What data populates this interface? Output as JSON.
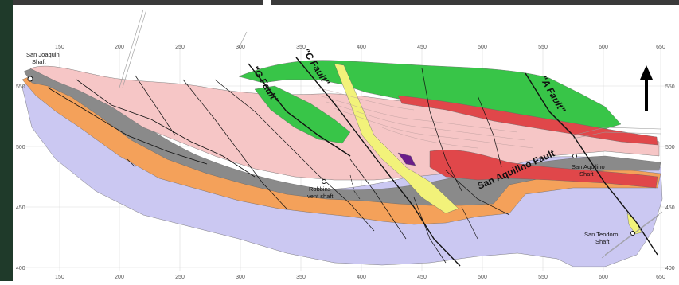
{
  "map": {
    "x_ticks": [
      "150",
      "200",
      "250",
      "300",
      "350",
      "400",
      "450",
      "500",
      "550",
      "600",
      "650"
    ],
    "y_ticks": [
      "550",
      "500",
      "450",
      "400"
    ],
    "fault_labels": {
      "g": "\"G Fault\"",
      "c": "\"C Fault\"",
      "a": "\"A Fault\"",
      "san_aquilino": "San Aquilino Fault"
    },
    "place_labels": {
      "san_joaquin_1": "San Joaquin",
      "san_joaquin_2": "Shaft",
      "robbins_1": "Robbins",
      "robbins_2": "vent shaft",
      "san_aquilino_1": "San Aquilino",
      "san_aquilino_2": "Shaft",
      "san_teodoro_1": "San Teodoro",
      "san_teodoro_2": "Shaft"
    },
    "north_arrow": "north-arrow-icon",
    "colors": {
      "lavender": "#cbc8f2",
      "orange": "#f4a15a",
      "grey": "#8a8a8a",
      "pink": "#f6c6c6",
      "green": "#38c548",
      "red": "#e0474a",
      "yellow": "#f2f27a",
      "purple": "#6a1e8a"
    }
  }
}
